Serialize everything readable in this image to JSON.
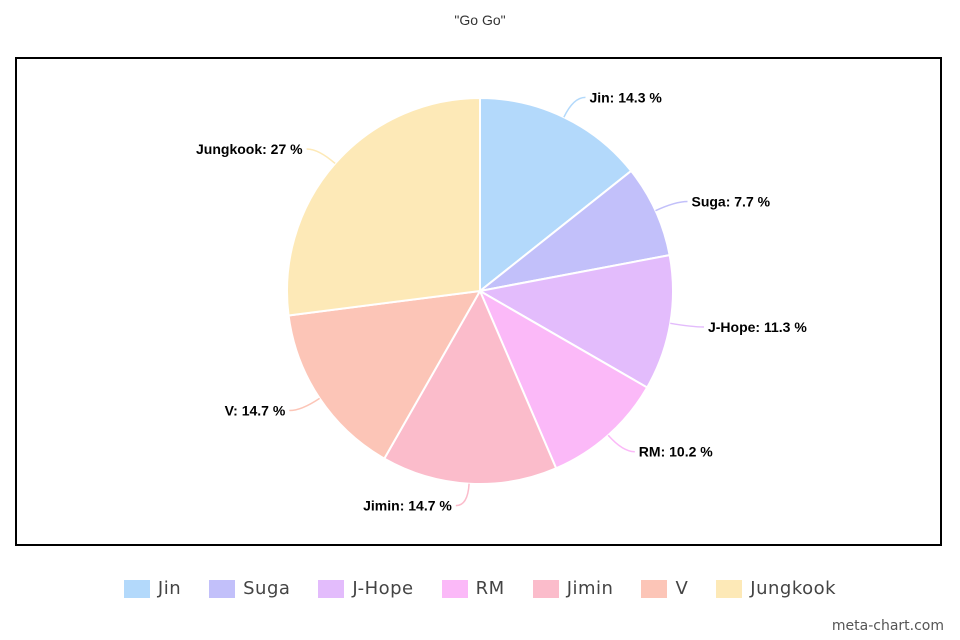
{
  "chart_data": {
    "type": "pie",
    "title": "\"Go Go\"",
    "categories": [
      "Jin",
      "Suga",
      "J-Hope",
      "RM",
      "Jimin",
      "V",
      "Jungkook"
    ],
    "values": [
      14.3,
      7.7,
      11.3,
      10.2,
      14.7,
      14.7,
      27
    ],
    "unit": "%",
    "data_labels": [
      "Jin: 14.3 %",
      "Suga: 7.7 %",
      "J-Hope: 11.3 %",
      "RM: 10.2 %",
      "Jimin: 14.7 %",
      "V: 14.7 %",
      "Jungkook: 27 %"
    ],
    "colors": [
      "#b3d9fb",
      "#c2c0fa",
      "#e3bcfc",
      "#fbb9f8",
      "#fbbccb",
      "#fcc5b7",
      "#fde9b7"
    ],
    "legend": {
      "position": "bottom",
      "items": [
        "Jin",
        "Suga",
        "J-Hope",
        "RM",
        "Jimin",
        "V",
        "Jungkook"
      ]
    }
  },
  "watermark": "meta-chart.com"
}
